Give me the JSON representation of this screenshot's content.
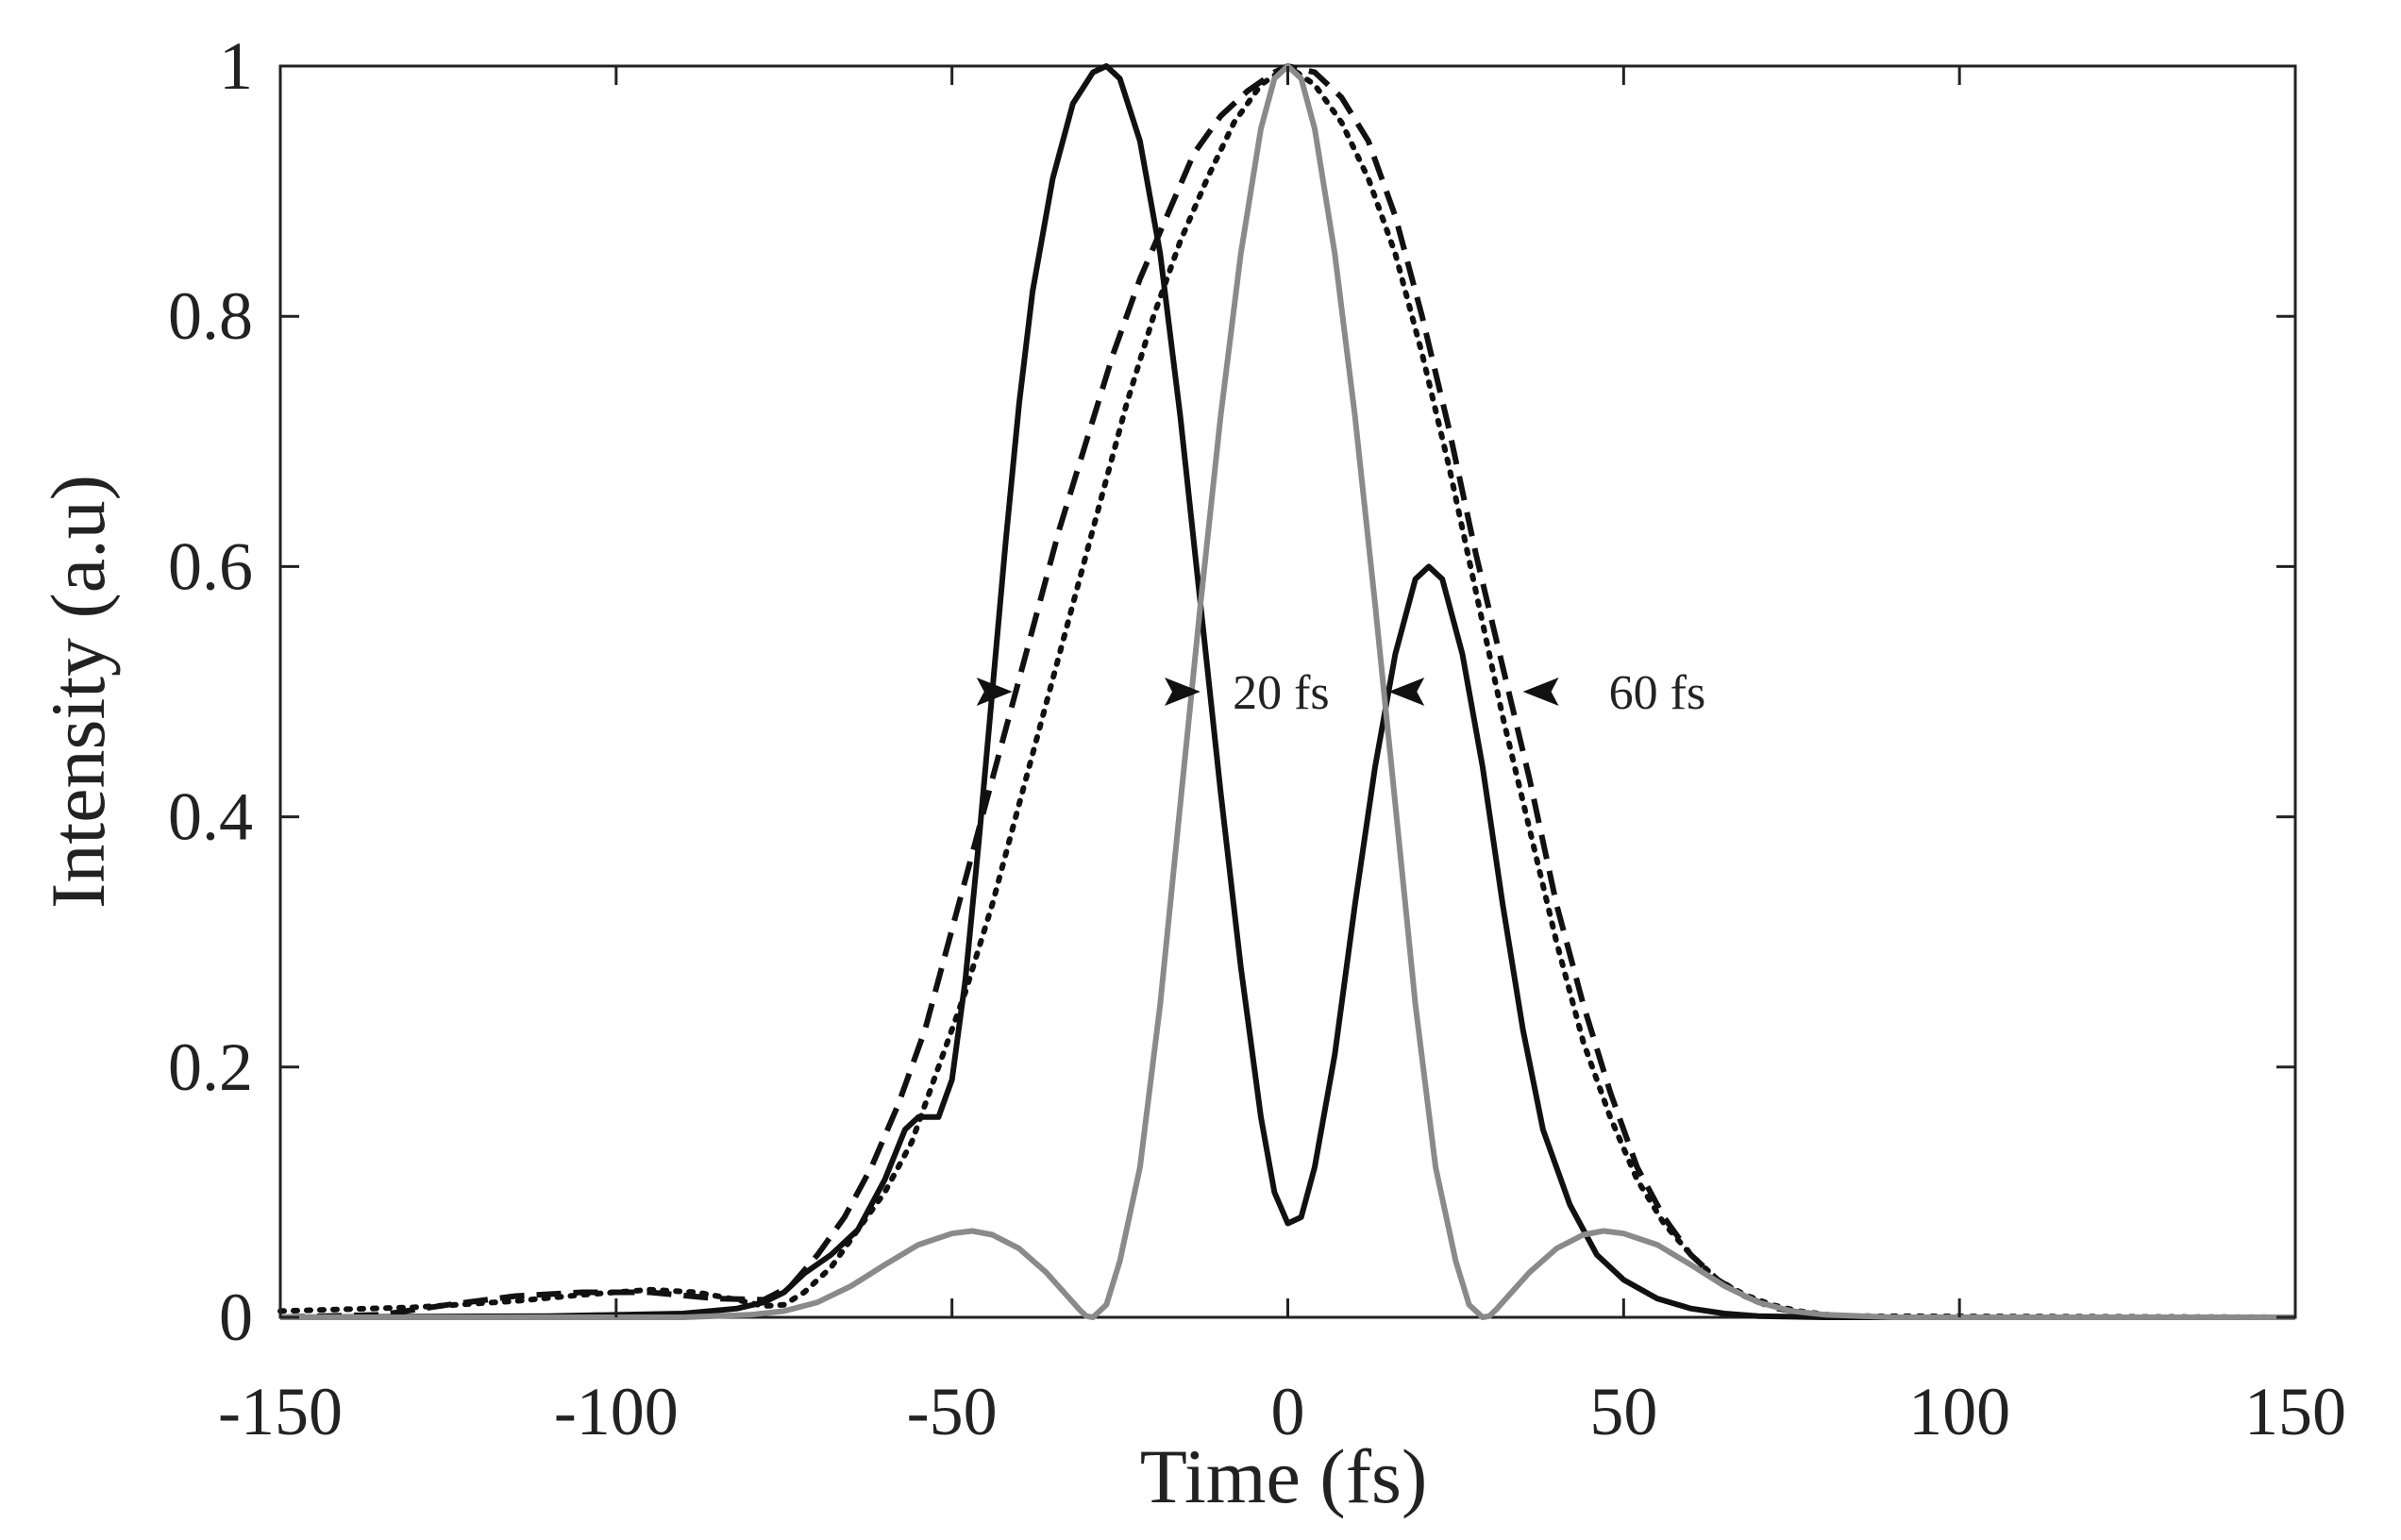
{
  "chart_data": {
    "type": "line",
    "title": "",
    "xlabel": "Time (fs)",
    "ylabel": "Intensity (a.u)",
    "xlim": [
      -150,
      150
    ],
    "ylim": [
      0,
      1
    ],
    "xticks": [
      -150,
      -100,
      -50,
      0,
      50,
      100,
      150
    ],
    "xtick_labels": [
      "-150",
      "-100",
      "-50",
      "0",
      "50",
      "100",
      "150"
    ],
    "yticks": [
      0,
      0.2,
      0.4,
      0.6,
      0.8,
      1
    ],
    "ytick_labels": [
      "0",
      "0.2",
      "0.4",
      "0.6",
      "0.8",
      "1"
    ],
    "grid": false,
    "series": [
      {
        "name": "solid black",
        "color": "#111111",
        "style": "solid",
        "points": [
          [
            -150,
            0
          ],
          [
            -110,
            0.001
          ],
          [
            -90,
            0.003
          ],
          [
            -82,
            0.007
          ],
          [
            -78,
            0.012
          ],
          [
            -75,
            0.02
          ],
          [
            -72,
            0.035
          ],
          [
            -68,
            0.05
          ],
          [
            -64,
            0.07
          ],
          [
            -60,
            0.11
          ],
          [
            -57,
            0.15
          ],
          [
            -55,
            0.16
          ],
          [
            -52,
            0.16
          ],
          [
            -50,
            0.19
          ],
          [
            -48,
            0.27
          ],
          [
            -46,
            0.38
          ],
          [
            -44,
            0.5
          ],
          [
            -42,
            0.62
          ],
          [
            -40,
            0.73
          ],
          [
            -38,
            0.82
          ],
          [
            -35,
            0.91
          ],
          [
            -32,
            0.97
          ],
          [
            -29,
            0.995
          ],
          [
            -27,
            1.0
          ],
          [
            -25,
            0.99
          ],
          [
            -22,
            0.94
          ],
          [
            -19,
            0.85
          ],
          [
            -16,
            0.72
          ],
          [
            -13,
            0.57
          ],
          [
            -10,
            0.42
          ],
          [
            -7,
            0.28
          ],
          [
            -4,
            0.16
          ],
          [
            -2,
            0.1
          ],
          [
            0,
            0.075
          ],
          [
            2,
            0.08
          ],
          [
            4,
            0.12
          ],
          [
            7,
            0.21
          ],
          [
            10,
            0.33
          ],
          [
            13,
            0.44
          ],
          [
            16,
            0.53
          ],
          [
            19,
            0.59
          ],
          [
            21,
            0.6
          ],
          [
            23,
            0.59
          ],
          [
            26,
            0.53
          ],
          [
            29,
            0.44
          ],
          [
            32,
            0.33
          ],
          [
            35,
            0.23
          ],
          [
            38,
            0.15
          ],
          [
            42,
            0.09
          ],
          [
            46,
            0.05
          ],
          [
            50,
            0.03
          ],
          [
            55,
            0.015
          ],
          [
            60,
            0.007
          ],
          [
            65,
            0.003
          ],
          [
            70,
            0.001
          ],
          [
            80,
            0
          ],
          [
            150,
            0
          ]
        ]
      },
      {
        "name": "dashed black",
        "color": "#111111",
        "style": "dashed",
        "points": [
          [
            -150,
            0
          ],
          [
            -135,
            0.002
          ],
          [
            -125,
            0.01
          ],
          [
            -115,
            0.017
          ],
          [
            -105,
            0.02
          ],
          [
            -95,
            0.02
          ],
          [
            -85,
            0.015
          ],
          [
            -78,
            0.014
          ],
          [
            -74,
            0.025
          ],
          [
            -70,
            0.05
          ],
          [
            -66,
            0.08
          ],
          [
            -62,
            0.12
          ],
          [
            -58,
            0.17
          ],
          [
            -54,
            0.23
          ],
          [
            -50,
            0.31
          ],
          [
            -46,
            0.39
          ],
          [
            -42,
            0.47
          ],
          [
            -38,
            0.55
          ],
          [
            -34,
            0.63
          ],
          [
            -30,
            0.7
          ],
          [
            -26,
            0.77
          ],
          [
            -22,
            0.83
          ],
          [
            -18,
            0.88
          ],
          [
            -14,
            0.93
          ],
          [
            -10,
            0.96
          ],
          [
            -6,
            0.98
          ],
          [
            -2,
            0.995
          ],
          [
            0,
            1.0
          ],
          [
            4,
            0.995
          ],
          [
            8,
            0.975
          ],
          [
            12,
            0.94
          ],
          [
            16,
            0.88
          ],
          [
            20,
            0.8
          ],
          [
            24,
            0.71
          ],
          [
            28,
            0.61
          ],
          [
            32,
            0.52
          ],
          [
            36,
            0.43
          ],
          [
            40,
            0.33
          ],
          [
            44,
            0.25
          ],
          [
            48,
            0.18
          ],
          [
            52,
            0.12
          ],
          [
            56,
            0.08
          ],
          [
            60,
            0.05
          ],
          [
            64,
            0.03
          ],
          [
            68,
            0.017
          ],
          [
            72,
            0.008
          ],
          [
            76,
            0.004
          ],
          [
            80,
            0.001
          ],
          [
            90,
            0
          ],
          [
            150,
            0
          ]
        ]
      },
      {
        "name": "dotted black",
        "color": "#111111",
        "style": "dotted",
        "points": [
          [
            -150,
            0.005
          ],
          [
            -130,
            0.008
          ],
          [
            -115,
            0.013
          ],
          [
            -105,
            0.018
          ],
          [
            -95,
            0.022
          ],
          [
            -88,
            0.02
          ],
          [
            -82,
            0.014
          ],
          [
            -78,
            0.009
          ],
          [
            -75,
            0.01
          ],
          [
            -72,
            0.02
          ],
          [
            -68,
            0.04
          ],
          [
            -64,
            0.07
          ],
          [
            -60,
            0.1
          ],
          [
            -56,
            0.14
          ],
          [
            -52,
            0.2
          ],
          [
            -48,
            0.26
          ],
          [
            -44,
            0.33
          ],
          [
            -40,
            0.41
          ],
          [
            -36,
            0.49
          ],
          [
            -32,
            0.57
          ],
          [
            -28,
            0.65
          ],
          [
            -24,
            0.73
          ],
          [
            -20,
            0.8
          ],
          [
            -16,
            0.86
          ],
          [
            -12,
            0.91
          ],
          [
            -8,
            0.955
          ],
          [
            -4,
            0.985
          ],
          [
            0,
            1.0
          ],
          [
            4,
            0.985
          ],
          [
            8,
            0.955
          ],
          [
            12,
            0.91
          ],
          [
            16,
            0.85
          ],
          [
            20,
            0.77
          ],
          [
            24,
            0.68
          ],
          [
            28,
            0.58
          ],
          [
            32,
            0.48
          ],
          [
            36,
            0.39
          ],
          [
            40,
            0.3
          ],
          [
            44,
            0.22
          ],
          [
            48,
            0.16
          ],
          [
            52,
            0.11
          ],
          [
            56,
            0.075
          ],
          [
            60,
            0.05
          ],
          [
            64,
            0.03
          ],
          [
            68,
            0.018
          ],
          [
            72,
            0.01
          ],
          [
            76,
            0.005
          ],
          [
            82,
            0.001
          ],
          [
            150,
            0
          ]
        ]
      },
      {
        "name": "solid gray",
        "color": "#8a8a8a",
        "style": "solid",
        "points": [
          [
            -150,
            0
          ],
          [
            -90,
            0
          ],
          [
            -80,
            0.002
          ],
          [
            -75,
            0.005
          ],
          [
            -70,
            0.012
          ],
          [
            -65,
            0.025
          ],
          [
            -60,
            0.042
          ],
          [
            -55,
            0.058
          ],
          [
            -50,
            0.067
          ],
          [
            -47,
            0.069
          ],
          [
            -44,
            0.066
          ],
          [
            -40,
            0.055
          ],
          [
            -36,
            0.036
          ],
          [
            -33,
            0.018
          ],
          [
            -31,
            0.006
          ],
          [
            -30,
            0.001
          ],
          [
            -29,
            0
          ],
          [
            -27,
            0.01
          ],
          [
            -25,
            0.045
          ],
          [
            -22,
            0.12
          ],
          [
            -19,
            0.25
          ],
          [
            -16,
            0.41
          ],
          [
            -13,
            0.57
          ],
          [
            -10,
            0.72
          ],
          [
            -7,
            0.85
          ],
          [
            -4,
            0.95
          ],
          [
            -2,
            0.99
          ],
          [
            0,
            1.0
          ],
          [
            2,
            0.99
          ],
          [
            4,
            0.95
          ],
          [
            7,
            0.85
          ],
          [
            10,
            0.72
          ],
          [
            13,
            0.57
          ],
          [
            16,
            0.41
          ],
          [
            19,
            0.25
          ],
          [
            22,
            0.12
          ],
          [
            25,
            0.045
          ],
          [
            27,
            0.01
          ],
          [
            29,
            0
          ],
          [
            30,
            0.001
          ],
          [
            31,
            0.006
          ],
          [
            33,
            0.018
          ],
          [
            36,
            0.036
          ],
          [
            40,
            0.055
          ],
          [
            44,
            0.066
          ],
          [
            47,
            0.069
          ],
          [
            50,
            0.067
          ],
          [
            55,
            0.058
          ],
          [
            60,
            0.042
          ],
          [
            65,
            0.025
          ],
          [
            70,
            0.012
          ],
          [
            75,
            0.005
          ],
          [
            80,
            0.002
          ],
          [
            90,
            0
          ],
          [
            150,
            0
          ]
        ]
      }
    ],
    "annotations": [
      {
        "text": "20 fs",
        "x": -1,
        "y": 0.5,
        "arrow_left_at": -13,
        "arrow_right_at": 15
      },
      {
        "text": "60 fs",
        "x": 55,
        "y": 0.5,
        "arrow_left_at": -41,
        "arrow_right_at": 35
      }
    ]
  }
}
